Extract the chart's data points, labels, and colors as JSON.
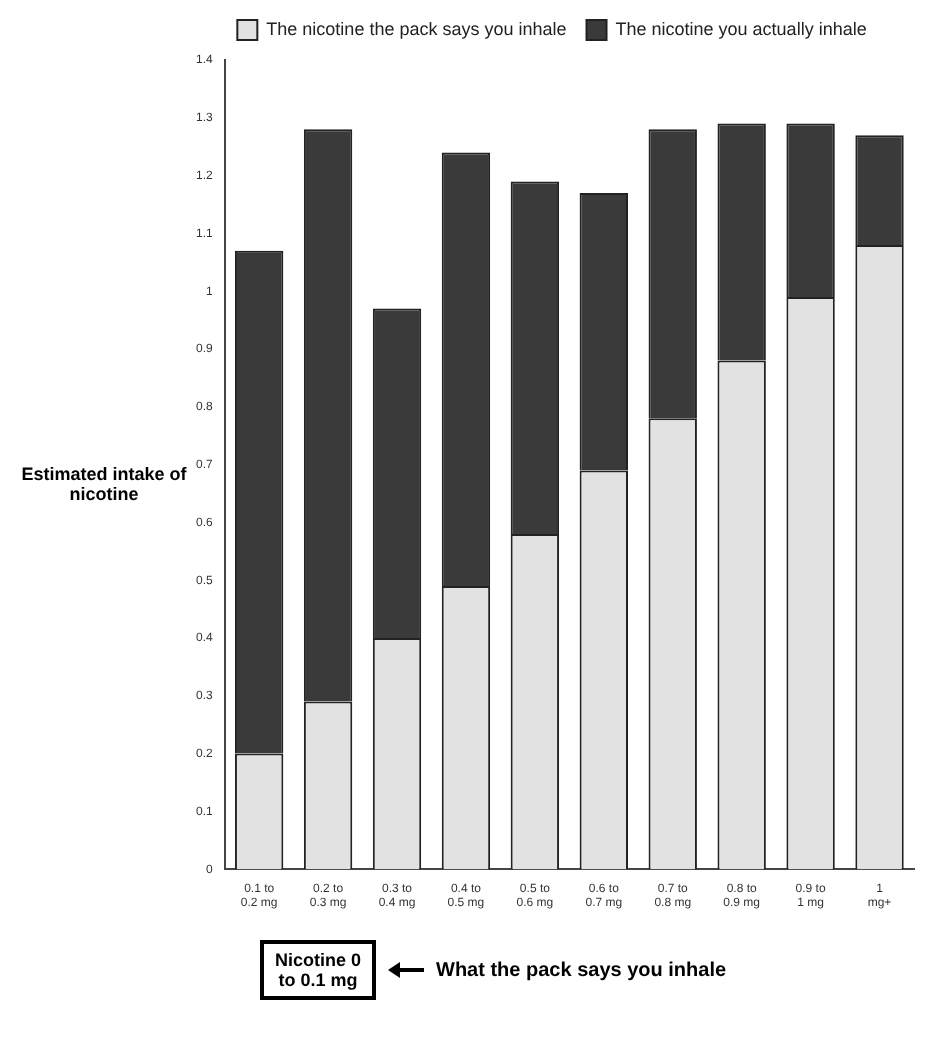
{
  "chart_data": {
    "type": "bar",
    "stacked": true,
    "ylabel": "Estimated intake of nicotine",
    "categories": [
      "0.1 to 0.2 mg",
      "0.2 to 0.3 mg",
      "0.3 to 0.4 mg",
      "0.4 to 0.5 mg",
      "0.5 to 0.6 mg",
      "0.6 to 0.7 mg",
      "0.7 to 0.8 mg",
      "0.8 to 0.9 mg",
      "0.9 to 1 mg",
      "1 mg+"
    ],
    "series": [
      {
        "name": "The nicotine the pack says you inhale",
        "color": "#e2e2e2",
        "values": [
          0.2,
          0.29,
          0.4,
          0.49,
          0.58,
          0.69,
          0.78,
          0.88,
          0.99,
          1.08
        ]
      },
      {
        "name": "The nicotine you actually inhale",
        "color": "#3a3a3a",
        "values": [
          0.87,
          0.99,
          0.57,
          0.75,
          0.61,
          0.48,
          0.5,
          0.41,
          0.3,
          0.19
        ]
      }
    ],
    "ylim": [
      0,
      1.4
    ],
    "yticks": [
      0,
      0.1,
      0.2,
      0.3,
      0.4,
      0.5,
      0.6,
      0.7,
      0.8,
      0.9,
      1,
      1.1,
      1.2,
      1.3,
      1.4
    ],
    "grid": false,
    "legend": "top",
    "annotations": [
      "Nicotine 0 to 0.1 mg",
      "What the pack says you inhale"
    ]
  }
}
